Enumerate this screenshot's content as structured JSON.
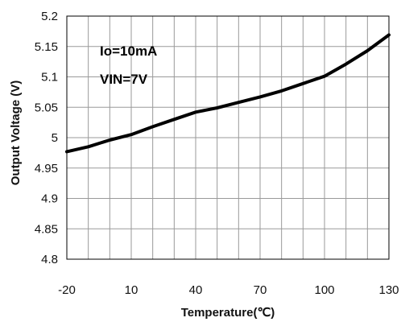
{
  "chart_data": {
    "type": "line",
    "xlabel": "Temperature(℃)",
    "ylabel": "Output Voltage (V)",
    "xlim": [
      -20,
      130
    ],
    "ylim": [
      4.8,
      5.2
    ],
    "x_ticks": [
      "-20",
      "10",
      "40",
      "70",
      "100",
      "130"
    ],
    "y_ticks": [
      "5.2",
      "5.15",
      "5.1",
      "5.05",
      "5",
      "4.95",
      "4.9",
      "4.85",
      "4.8"
    ],
    "grid": true,
    "annotations": [
      "Io=10mA",
      "VIN=7V"
    ],
    "series": [
      {
        "x": [
          -20,
          -10,
          0,
          10,
          20,
          30,
          40,
          50,
          60,
          70,
          80,
          90,
          100,
          110,
          120,
          130
        ],
        "y": [
          4.977,
          4.985,
          4.996,
          5.005,
          5.018,
          5.03,
          5.042,
          5.049,
          5.058,
          5.067,
          5.077,
          5.089,
          5.101,
          5.121,
          5.143,
          5.169
        ]
      }
    ]
  }
}
